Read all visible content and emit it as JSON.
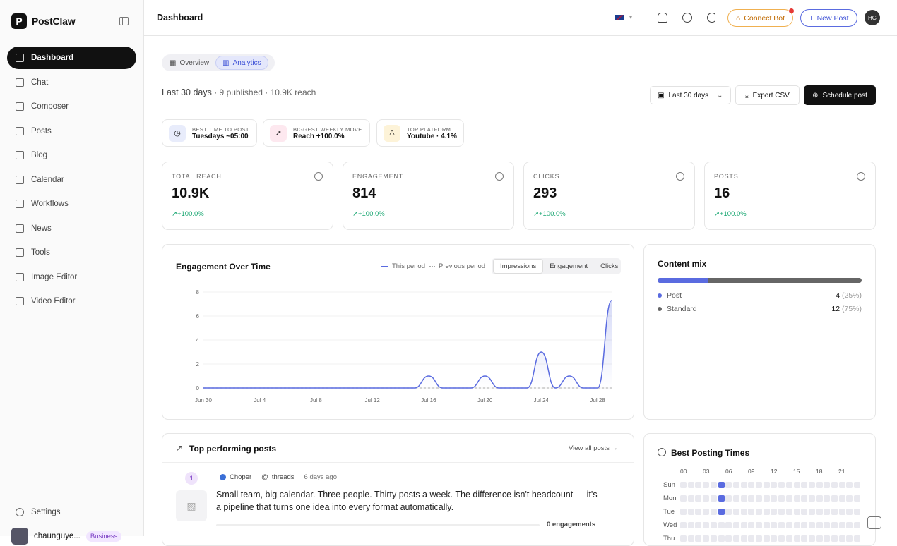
{
  "app": {
    "name": "PostClaw"
  },
  "sidebar": {
    "items": [
      {
        "label": "Dashboard",
        "icon": "grid-icon",
        "active": true
      },
      {
        "label": "Chat",
        "icon": "chat-icon"
      },
      {
        "label": "Composer",
        "icon": "compose-icon"
      },
      {
        "label": "Posts",
        "icon": "file-icon"
      },
      {
        "label": "Blog",
        "icon": "doc-icon"
      },
      {
        "label": "Calendar",
        "icon": "calendar-icon"
      },
      {
        "label": "Workflows",
        "icon": "workflow-icon"
      },
      {
        "label": "News",
        "icon": "news-icon"
      },
      {
        "label": "Tools",
        "icon": "tools-icon"
      },
      {
        "label": "Image Editor",
        "icon": "image-icon"
      },
      {
        "label": "Video Editor",
        "icon": "film-icon"
      }
    ],
    "settings": "Settings",
    "user": {
      "name": "chaunguye...",
      "plan": "Business"
    }
  },
  "header": {
    "title": "Dashboard",
    "connect_bot": "Connect Bot",
    "new_post": "New Post",
    "avatar_initials": "HG"
  },
  "tabs": {
    "overview": "Overview",
    "analytics": "Analytics"
  },
  "summary": {
    "period": "Last 30 days",
    "rest": " · 9 published · 10.9K reach"
  },
  "controls": {
    "range": "Last 30 days",
    "export": "Export CSV",
    "schedule": "Schedule post"
  },
  "insights": [
    {
      "caption": "BEST TIME TO POST",
      "value": "Tuesdays ~05:00",
      "color": "#e8ecfb",
      "icon": "clock-icon"
    },
    {
      "caption": "BIGGEST WEEKLY MOVE",
      "value": "Reach +100.0%",
      "color": "#fde8ef",
      "icon": "trend-icon"
    },
    {
      "caption": "TOP PLATFORM",
      "value": "Youtube · 4.1%",
      "color": "#fdf3d8",
      "icon": "award-icon"
    }
  ],
  "stats": [
    {
      "label": "TOTAL REACH",
      "value": "10.9K",
      "delta": "+100.0%",
      "icon": "eye-icon"
    },
    {
      "label": "ENGAGEMENT",
      "value": "814",
      "delta": "+100.0%",
      "icon": "heart-icon"
    },
    {
      "label": "CLICKS",
      "value": "293",
      "delta": "+100.0%",
      "icon": "cursor-icon"
    },
    {
      "label": "POSTS",
      "value": "16",
      "delta": "+100.0%",
      "icon": "users-icon"
    }
  ],
  "chart_panel": {
    "title": "Engagement Over Time",
    "legend_this": "This period",
    "legend_prev": "Previous period",
    "segments": [
      "Impressions",
      "Engagement",
      "Clicks"
    ]
  },
  "chart_data": {
    "type": "area",
    "x": [
      "Jun 30",
      "Jul 1",
      "Jul 2",
      "Jul 3",
      "Jul 4",
      "Jul 5",
      "Jul 6",
      "Jul 7",
      "Jul 8",
      "Jul 9",
      "Jul 10",
      "Jul 11",
      "Jul 12",
      "Jul 13",
      "Jul 14",
      "Jul 15",
      "Jul 16",
      "Jul 17",
      "Jul 18",
      "Jul 19",
      "Jul 20",
      "Jul 21",
      "Jul 22",
      "Jul 23",
      "Jul 24",
      "Jul 25",
      "Jul 26",
      "Jul 27",
      "Jul 28",
      "Jul 29"
    ],
    "xticks": [
      "Jun 30",
      "Jul 4",
      "Jul 8",
      "Jul 12",
      "Jul 16",
      "Jul 20",
      "Jul 24",
      "Jul 28"
    ],
    "yticks": [
      0,
      2,
      4,
      6,
      8
    ],
    "ylim": [
      0,
      8
    ],
    "series": [
      {
        "name": "This period",
        "values": [
          0,
          0,
          0,
          0,
          0,
          0,
          0,
          0,
          0,
          0,
          0,
          0,
          0,
          0,
          0,
          0,
          1,
          0,
          0,
          0,
          1,
          0,
          0,
          0,
          3,
          0,
          1,
          0,
          0,
          7.3
        ],
        "color": "#5a6be0"
      },
      {
        "name": "Previous period",
        "values": [
          0,
          0,
          0,
          0,
          0,
          0,
          0,
          0,
          0,
          0,
          0,
          0,
          0,
          0,
          0,
          0,
          0,
          0,
          0,
          0,
          0,
          0,
          0,
          0,
          0,
          0,
          0,
          0,
          0,
          0
        ],
        "color": "#bbbbbb"
      }
    ]
  },
  "content_mix": {
    "title": "Content mix",
    "rows": [
      {
        "label": "Post",
        "count": "4",
        "pct": "(25%)",
        "share": 0.25,
        "color": "#5a6be0"
      },
      {
        "label": "Standard",
        "count": "12",
        "pct": "(75%)",
        "share": 0.75,
        "color": "#666666"
      }
    ]
  },
  "top_posts": {
    "title": "Top performing posts",
    "view_all": "View all posts →",
    "items": [
      {
        "rank": "1",
        "account": "Choper",
        "platform": "threads",
        "time": "6 days ago",
        "text": "Small team, big calendar. Three people. Thirty posts a week. The difference isn't headcount — it's a pipeline that turns one idea into every format automatically.",
        "engagements": "0 engagements"
      }
    ]
  },
  "best_times": {
    "title": "Best Posting Times",
    "hours": [
      "00",
      "03",
      "06",
      "09",
      "12",
      "15",
      "18",
      "21"
    ],
    "days": [
      "Sun",
      "Mon",
      "Tue",
      "Wed",
      "Thu"
    ],
    "highlight_hour": 5
  }
}
